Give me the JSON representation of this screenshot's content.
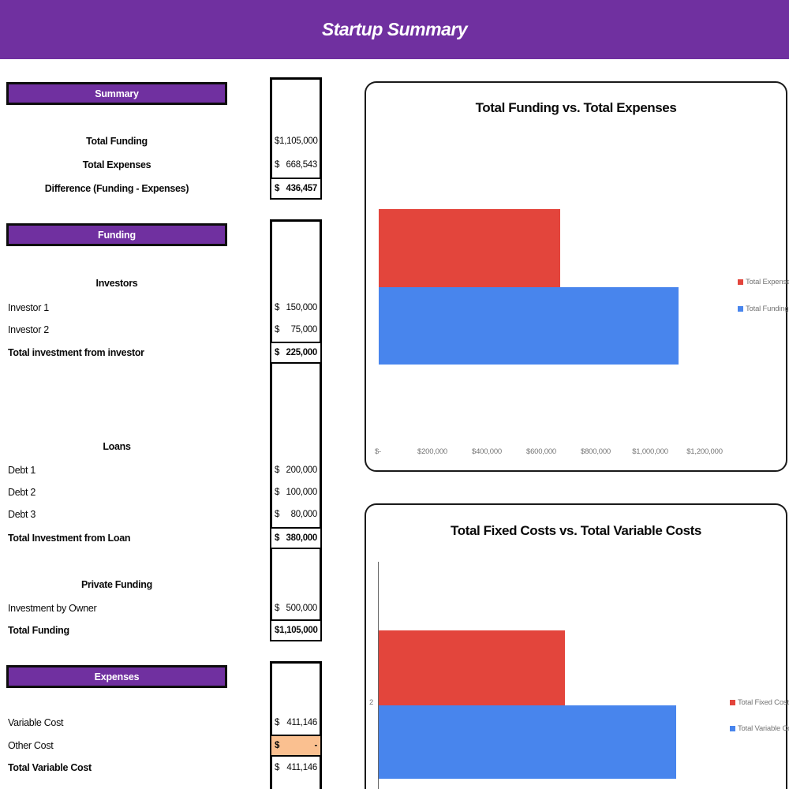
{
  "banner": {
    "title": "Startup Summary"
  },
  "colors": {
    "banner_purple": "#7030A0",
    "section_header_purple": "#7030A0",
    "bar_red": "#E3453C",
    "bar_blue": "#4885ED",
    "highlight_orange": "#FAC090",
    "axis_text_gray": "#757575"
  },
  "sections": {
    "summary": {
      "header": "Summary",
      "rows": [
        {
          "label": "Total Funding",
          "currency": "$",
          "value": "1,105,000"
        },
        {
          "label": "Total Expenses",
          "currency": "$",
          "value": "668,543"
        },
        {
          "label": "Difference (Funding - Expenses)",
          "currency": "$",
          "value": "436,457"
        }
      ]
    },
    "funding": {
      "header": "Funding",
      "investors": {
        "subheader": "Investors",
        "rows": [
          {
            "label": "Investor 1",
            "currency": "$",
            "value": "150,000"
          },
          {
            "label": "Investor 2",
            "currency": "$",
            "value": "75,000"
          }
        ],
        "total": {
          "label": "Total investment from investor",
          "currency": "$",
          "value": "225,000"
        }
      },
      "loans": {
        "subheader": "Loans",
        "rows": [
          {
            "label": "Debt 1",
            "currency": "$",
            "value": "200,000"
          },
          {
            "label": "Debt 2",
            "currency": "$",
            "value": "100,000"
          },
          {
            "label": "Debt 3",
            "currency": "$",
            "value": "80,000"
          }
        ],
        "total": {
          "label": "Total Investment from Loan",
          "currency": "$",
          "value": "380,000"
        }
      },
      "private_funding": {
        "subheader": "Private Funding",
        "rows": [
          {
            "label": "Investment by Owner",
            "currency": "$",
            "value": "500,000"
          }
        ],
        "total": {
          "label": "Total Funding",
          "currency": "$",
          "value": "1,105,000"
        }
      }
    },
    "expenses": {
      "header": "Expenses",
      "rows": [
        {
          "label": "Variable Cost",
          "currency": "$",
          "value": "411,146"
        },
        {
          "label": "Other Cost",
          "currency": "$",
          "value": "-"
        },
        {
          "label": "Total Variable Cost",
          "currency": "$",
          "value": "411,146"
        }
      ]
    }
  },
  "chart_data": [
    {
      "type": "bar",
      "orientation": "horizontal",
      "title": "Total Funding vs. Total Expenses",
      "series": [
        {
          "name": "Total Expenses",
          "value": 668543,
          "color": "#E3453C"
        },
        {
          "name": "Total Funding",
          "value": 1105000,
          "color": "#4885ED"
        }
      ],
      "xlim": [
        0,
        1200000
      ],
      "x_ticks": [
        "$-",
        "$200,000",
        "$400,000",
        "$600,000",
        "$800,000",
        "$1,000,000",
        "$1,200,000"
      ],
      "legend_position": "right",
      "grid": false
    },
    {
      "type": "bar",
      "orientation": "horizontal",
      "title": "Total Fixed Costs vs. Total Variable Costs",
      "series": [
        {
          "name": "Total Fixed Cost",
          "value": 257397,
          "color": "#E3453C"
        },
        {
          "name": "Total Variable Cost",
          "value": 411146,
          "color": "#4885ED"
        }
      ],
      "xlim": [
        0,
        450000
      ],
      "category_tick_label": "2",
      "legend_position": "right",
      "grid": false
    }
  ]
}
